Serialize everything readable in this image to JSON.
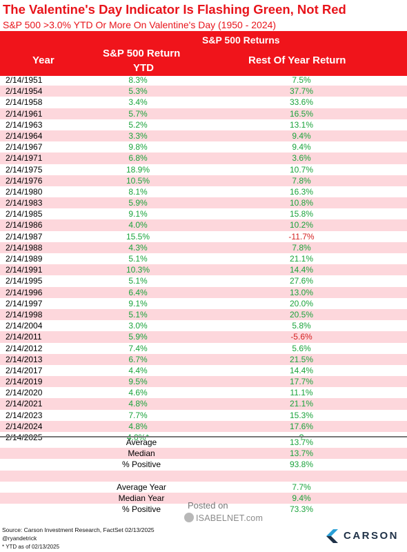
{
  "title": "The Valentine's Day Indicator Is Flashing Green, Not Red",
  "subtitle": "S&P 500 >3.0% YTD Or More On Valentine's Day (1950 - 2024)",
  "colors": {
    "accent": "#f0141b",
    "positive": "#1aa33b",
    "negative": "#d42020",
    "alt_row": "#fdd7dc"
  },
  "header": {
    "group": "S&P 500 Returns",
    "year": "Year",
    "ytd_line1": "S&P 500 Return",
    "ytd_line2": "YTD",
    "rest": "Rest Of Year Return"
  },
  "chart_data": {
    "type": "table",
    "columns": [
      "Year",
      "S&P 500 Return YTD",
      "Rest Of Year Return"
    ],
    "rows": [
      {
        "year": "2/14/1951",
        "ytd": "8.3%",
        "rest": "7.5%"
      },
      {
        "year": "2/14/1954",
        "ytd": "5.3%",
        "rest": "37.7%"
      },
      {
        "year": "2/14/1958",
        "ytd": "3.4%",
        "rest": "33.6%"
      },
      {
        "year": "2/14/1961",
        "ytd": "5.7%",
        "rest": "16.5%"
      },
      {
        "year": "2/14/1963",
        "ytd": "5.2%",
        "rest": "13.1%"
      },
      {
        "year": "2/14/1964",
        "ytd": "3.3%",
        "rest": "9.4%"
      },
      {
        "year": "2/14/1967",
        "ytd": "9.8%",
        "rest": "9.4%"
      },
      {
        "year": "2/14/1971",
        "ytd": "6.8%",
        "rest": "3.6%"
      },
      {
        "year": "2/14/1975",
        "ytd": "18.9%",
        "rest": "10.7%"
      },
      {
        "year": "2/14/1976",
        "ytd": "10.5%",
        "rest": "7.8%"
      },
      {
        "year": "2/14/1980",
        "ytd": "8.1%",
        "rest": "16.3%"
      },
      {
        "year": "2/14/1983",
        "ytd": "5.9%",
        "rest": "10.8%"
      },
      {
        "year": "2/14/1985",
        "ytd": "9.1%",
        "rest": "15.8%"
      },
      {
        "year": "2/14/1986",
        "ytd": "4.0%",
        "rest": "10.2%"
      },
      {
        "year": "2/14/1987",
        "ytd": "15.5%",
        "rest": "-11.7%"
      },
      {
        "year": "2/14/1988",
        "ytd": "4.3%",
        "rest": "7.8%"
      },
      {
        "year": "2/14/1989",
        "ytd": "5.1%",
        "rest": "21.1%"
      },
      {
        "year": "2/14/1991",
        "ytd": "10.3%",
        "rest": "14.4%"
      },
      {
        "year": "2/14/1995",
        "ytd": "5.1%",
        "rest": "27.6%"
      },
      {
        "year": "2/14/1996",
        "ytd": "6.4%",
        "rest": "13.0%"
      },
      {
        "year": "2/14/1997",
        "ytd": "9.1%",
        "rest": "20.0%"
      },
      {
        "year": "2/14/1998",
        "ytd": "5.1%",
        "rest": "20.5%"
      },
      {
        "year": "2/14/2004",
        "ytd": "3.0%",
        "rest": "5.8%"
      },
      {
        "year": "2/14/2011",
        "ytd": "5.9%",
        "rest": "-5.6%"
      },
      {
        "year": "2/14/2012",
        "ytd": "7.4%",
        "rest": "5.6%"
      },
      {
        "year": "2/14/2013",
        "ytd": "6.7%",
        "rest": "21.5%"
      },
      {
        "year": "2/14/2017",
        "ytd": "4.4%",
        "rest": "14.4%"
      },
      {
        "year": "2/14/2019",
        "ytd": "9.5%",
        "rest": "17.7%"
      },
      {
        "year": "2/14/2020",
        "ytd": "4.6%",
        "rest": "11.1%"
      },
      {
        "year": "2/14/2021",
        "ytd": "4.8%",
        "rest": "21.1%"
      },
      {
        "year": "2/14/2023",
        "ytd": "7.7%",
        "rest": "15.3%"
      },
      {
        "year": "2/14/2024",
        "ytd": "4.8%",
        "rest": "17.6%"
      },
      {
        "year": "2/14/2025",
        "ytd": "4.0%*",
        "rest": "?"
      }
    ]
  },
  "summary": [
    {
      "label": "Average",
      "value": "13.7%"
    },
    {
      "label": "Median",
      "value": "13.7%"
    },
    {
      "label": "% Positive",
      "value": "93.8%"
    },
    {
      "label": "",
      "value": ""
    },
    {
      "label": "Average Year",
      "value": "7.7%"
    },
    {
      "label": "Median Year",
      "value": "9.4%"
    },
    {
      "label": "% Positive",
      "value": "73.3%"
    }
  ],
  "watermark": {
    "posted": "Posted on",
    "site": "ISABELNET.com"
  },
  "footer": {
    "source": "Source: Carson Investment Research, FactSet 02/13/2025",
    "handle": "@ryandetrick",
    "note": "* YTD as of 02/13/2025"
  },
  "logo": {
    "text": "CARSON",
    "icon": "carson-chevron-icon"
  }
}
